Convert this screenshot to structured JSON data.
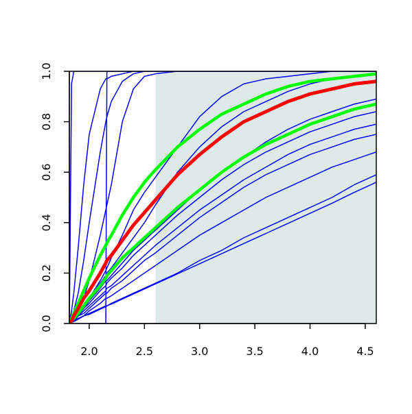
{
  "chart_data": {
    "type": "line",
    "xlim": [
      1.82,
      4.6
    ],
    "ylim": [
      0,
      1
    ],
    "xticks": [
      {
        "value": 2,
        "label": "2.0"
      },
      2.5,
      {
        "value": 3,
        "label": "3.0"
      },
      3.5,
      {
        "value": 4,
        "label": "4.0"
      },
      4.5
    ],
    "yticks": [
      {
        "value": 0,
        "label": "0.0"
      },
      0.2,
      0.4,
      0.6,
      0.8,
      {
        "value": 1,
        "label": "1.0"
      }
    ],
    "shaded_band": {
      "x": [
        2.6,
        4.6
      ],
      "color": "#deeaea"
    },
    "x": [
      1.82,
      1.84,
      1.86,
      1.9,
      1.95,
      2.0,
      2.1,
      2.15,
      2.16,
      2.2,
      2.3,
      2.4,
      2.5,
      2.6,
      2.8,
      3.0,
      3.2,
      3.4,
      3.6,
      3.8,
      4.0,
      4.2,
      4.4,
      4.6
    ],
    "series": [
      {
        "color": "#0000ff",
        "width": 1.5,
        "values": [
          0,
          0.95,
          1,
          1,
          1,
          1,
          1,
          1,
          1,
          1,
          1,
          1,
          1,
          1,
          1,
          1,
          1,
          1,
          1,
          1,
          1,
          1,
          1,
          1
        ]
      },
      {
        "color": "#0000ff",
        "width": 1.5,
        "values": [
          0,
          0,
          0,
          0,
          0,
          0,
          0,
          0,
          1,
          1,
          1,
          1,
          1,
          1,
          1,
          1,
          1,
          1,
          1,
          1,
          1,
          1,
          1,
          1
        ]
      },
      {
        "color": "#0000ff",
        "width": 1.5,
        "values": [
          0,
          0.05,
          0.12,
          0.3,
          0.55,
          0.75,
          0.93,
          0.97,
          0.97,
          0.98,
          0.99,
          1,
          1,
          1,
          1,
          1,
          1,
          1,
          1,
          1,
          1,
          1,
          1,
          1
        ]
      },
      {
        "color": "#0000ff",
        "width": 1.5,
        "values": [
          0,
          0.02,
          0.05,
          0.12,
          0.25,
          0.4,
          0.68,
          0.8,
          0.82,
          0.88,
          0.96,
          0.99,
          1,
          1,
          1,
          1,
          1,
          1,
          1,
          1,
          1,
          1,
          1,
          1
        ]
      },
      {
        "color": "#0000ff",
        "width": 1.5,
        "values": [
          0,
          0.01,
          0.02,
          0.05,
          0.1,
          0.17,
          0.35,
          0.45,
          0.47,
          0.55,
          0.8,
          0.93,
          0.98,
          0.99,
          1,
          1,
          1,
          1,
          1,
          1,
          1,
          1,
          1,
          1
        ]
      },
      {
        "color": "#0000ff",
        "width": 1.5,
        "values": [
          0,
          0.005,
          0.01,
          0.03,
          0.06,
          0.1,
          0.17,
          0.21,
          0.22,
          0.26,
          0.35,
          0.45,
          0.52,
          0.58,
          0.7,
          0.82,
          0.9,
          0.95,
          0.97,
          0.98,
          0.99,
          1,
          1,
          1
        ]
      },
      {
        "color": "#0000ff",
        "width": 1.5,
        "values": [
          0,
          0.01,
          0.02,
          0.04,
          0.07,
          0.1,
          0.16,
          0.19,
          0.2,
          0.22,
          0.28,
          0.34,
          0.4,
          0.47,
          0.6,
          0.7,
          0.78,
          0.84,
          0.88,
          0.92,
          0.95,
          0.97,
          0.98,
          0.99
        ]
      },
      {
        "color": "#0000ff",
        "width": 1.5,
        "values": [
          0,
          0.01,
          0.02,
          0.04,
          0.06,
          0.09,
          0.14,
          0.17,
          0.17,
          0.19,
          0.24,
          0.29,
          0.33,
          0.37,
          0.45,
          0.53,
          0.6,
          0.66,
          0.72,
          0.77,
          0.81,
          0.84,
          0.87,
          0.89
        ]
      },
      {
        "color": "#0000ff",
        "width": 1.5,
        "values": [
          0,
          0.01,
          0.02,
          0.04,
          0.06,
          0.08,
          0.13,
          0.15,
          0.16,
          0.18,
          0.22,
          0.27,
          0.31,
          0.35,
          0.43,
          0.5,
          0.57,
          0.63,
          0.68,
          0.72,
          0.76,
          0.79,
          0.82,
          0.84
        ]
      },
      {
        "color": "#0000ff",
        "width": 1.5,
        "values": [
          0,
          0.01,
          0.01,
          0.03,
          0.05,
          0.07,
          0.11,
          0.13,
          0.14,
          0.15,
          0.19,
          0.23,
          0.27,
          0.31,
          0.38,
          0.45,
          0.51,
          0.57,
          0.62,
          0.67,
          0.71,
          0.74,
          0.77,
          0.79
        ]
      },
      {
        "color": "#0000ff",
        "width": 1.5,
        "values": [
          0,
          0.01,
          0.01,
          0.03,
          0.04,
          0.06,
          0.1,
          0.12,
          0.12,
          0.14,
          0.17,
          0.21,
          0.25,
          0.28,
          0.35,
          0.42,
          0.48,
          0.54,
          0.59,
          0.63,
          0.67,
          0.7,
          0.73,
          0.75
        ]
      },
      {
        "color": "#0000ff",
        "width": 1.5,
        "values": [
          0,
          0.005,
          0.01,
          0.02,
          0.03,
          0.05,
          0.08,
          0.1,
          0.1,
          0.11,
          0.14,
          0.17,
          0.2,
          0.23,
          0.29,
          0.35,
          0.4,
          0.45,
          0.5,
          0.54,
          0.58,
          0.62,
          0.65,
          0.68
        ]
      },
      {
        "color": "#0000ff",
        "width": 1.5,
        "values": [
          0,
          0.004,
          0.008,
          0.02,
          0.03,
          0.04,
          0.06,
          0.07,
          0.07,
          0.08,
          0.1,
          0.12,
          0.14,
          0.16,
          0.2,
          0.25,
          0.29,
          0.34,
          0.38,
          0.42,
          0.46,
          0.5,
          0.55,
          0.59
        ]
      },
      {
        "color": "#0000ff",
        "width": 1.5,
        "values": [
          0,
          0.004,
          0.008,
          0.017,
          0.03,
          0.036,
          0.057,
          0.067,
          0.07,
          0.077,
          0.097,
          0.117,
          0.137,
          0.157,
          0.197,
          0.237,
          0.277,
          0.317,
          0.357,
          0.397,
          0.437,
          0.477,
          0.52,
          0.56
        ]
      },
      {
        "color": "#00ff00",
        "width": 4.5,
        "values": [
          0,
          0.01,
          0.02,
          0.04,
          0.07,
          0.1,
          0.15,
          0.18,
          0.19,
          0.21,
          0.26,
          0.3,
          0.34,
          0.38,
          0.46,
          0.53,
          0.6,
          0.66,
          0.71,
          0.75,
          0.79,
          0.82,
          0.85,
          0.87
        ]
      },
      {
        "color": "#00ff00",
        "width": 4.5,
        "values": [
          0,
          0.02,
          0.04,
          0.08,
          0.13,
          0.18,
          0.27,
          0.31,
          0.32,
          0.35,
          0.43,
          0.5,
          0.56,
          0.61,
          0.7,
          0.77,
          0.83,
          0.87,
          0.91,
          0.94,
          0.96,
          0.97,
          0.98,
          0.99
        ]
      },
      {
        "color": "#ff0000",
        "width": 5,
        "values": [
          0,
          0.01,
          0.03,
          0.06,
          0.1,
          0.13,
          0.2,
          0.24,
          0.25,
          0.27,
          0.33,
          0.39,
          0.44,
          0.49,
          0.59,
          0.67,
          0.74,
          0.8,
          0.84,
          0.88,
          0.91,
          0.93,
          0.95,
          0.96
        ]
      }
    ]
  }
}
